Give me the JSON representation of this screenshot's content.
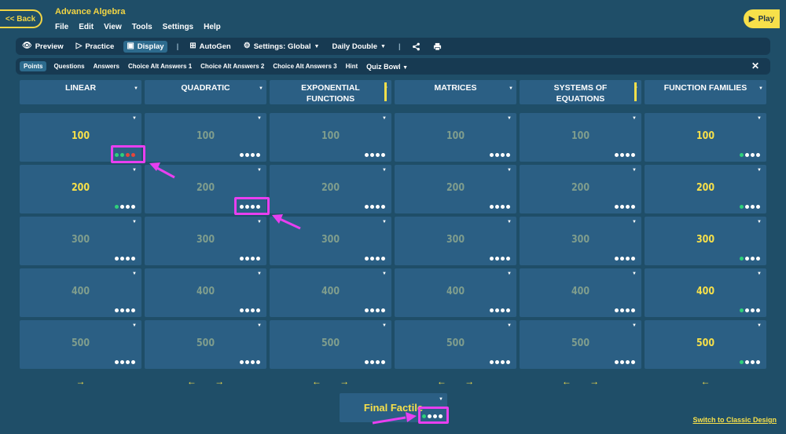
{
  "back_label": "<< Back",
  "app_title": "Advance Algebra",
  "menu": [
    "File",
    "Edit",
    "View",
    "Tools",
    "Settings",
    "Help"
  ],
  "play_label": "Play",
  "toolbar": {
    "preview": "Preview",
    "practice": "Practice",
    "display": "Display",
    "autogen": "AutoGen",
    "settings": "Settings: Global",
    "daily": "Daily Double"
  },
  "filters": [
    "Points",
    "Questions",
    "Answers",
    "Choice Alt Answers 1",
    "Choice Alt Answers 2",
    "Choice Alt Answers 3",
    "Hint",
    "Quiz Bowl"
  ],
  "categories": [
    {
      "title": "LINEAR",
      "bar": false
    },
    {
      "title": "QUADRATIC",
      "bar": false
    },
    {
      "title": "EXPONENTIAL\nFUNCTIONS",
      "bar": true
    },
    {
      "title": "MATRICES",
      "bar": false
    },
    {
      "title": "SYSTEMS OF\nEQUATIONS",
      "bar": true
    },
    {
      "title": "FUNCTION FAMILIES",
      "bar": false
    }
  ],
  "rows": [
    {
      "value": "100",
      "tiles": [
        {
          "bright": true,
          "dots": [
            "green",
            "green",
            "red",
            "red"
          ]
        },
        {
          "bright": false,
          "dots": [
            "white",
            "white",
            "white",
            "white"
          ]
        },
        {
          "bright": false,
          "dots": [
            "white",
            "white",
            "white",
            "white"
          ]
        },
        {
          "bright": false,
          "dots": [
            "white",
            "white",
            "white",
            "white"
          ]
        },
        {
          "bright": false,
          "dots": [
            "white",
            "white",
            "white",
            "white"
          ]
        },
        {
          "bright": true,
          "dots": [
            "green",
            "white",
            "white",
            "white"
          ]
        }
      ]
    },
    {
      "value": "200",
      "tiles": [
        {
          "bright": true,
          "dots": [
            "green",
            "white",
            "white",
            "white"
          ]
        },
        {
          "bright": false,
          "dots": [
            "white",
            "white",
            "white",
            "white"
          ]
        },
        {
          "bright": false,
          "dots": [
            "white",
            "white",
            "white",
            "white"
          ]
        },
        {
          "bright": false,
          "dots": [
            "white",
            "white",
            "white",
            "white"
          ]
        },
        {
          "bright": false,
          "dots": [
            "white",
            "white",
            "white",
            "white"
          ]
        },
        {
          "bright": true,
          "dots": [
            "green",
            "white",
            "white",
            "white"
          ]
        }
      ]
    },
    {
      "value": "300",
      "tiles": [
        {
          "bright": false,
          "dots": [
            "white",
            "white",
            "white",
            "white"
          ]
        },
        {
          "bright": false,
          "dots": [
            "white",
            "white",
            "white",
            "white"
          ]
        },
        {
          "bright": false,
          "dots": [
            "white",
            "white",
            "white",
            "white"
          ]
        },
        {
          "bright": false,
          "dots": [
            "white",
            "white",
            "white",
            "white"
          ]
        },
        {
          "bright": false,
          "dots": [
            "white",
            "white",
            "white",
            "white"
          ]
        },
        {
          "bright": true,
          "dots": [
            "green",
            "white",
            "white",
            "white"
          ]
        }
      ]
    },
    {
      "value": "400",
      "tiles": [
        {
          "bright": false,
          "dots": [
            "white",
            "white",
            "white",
            "white"
          ]
        },
        {
          "bright": false,
          "dots": [
            "white",
            "white",
            "white",
            "white"
          ]
        },
        {
          "bright": false,
          "dots": [
            "white",
            "white",
            "white",
            "white"
          ]
        },
        {
          "bright": false,
          "dots": [
            "white",
            "white",
            "white",
            "white"
          ]
        },
        {
          "bright": false,
          "dots": [
            "white",
            "white",
            "white",
            "white"
          ]
        },
        {
          "bright": true,
          "dots": [
            "green",
            "white",
            "white",
            "white"
          ]
        }
      ]
    },
    {
      "value": "500",
      "tiles": [
        {
          "bright": false,
          "dots": [
            "white",
            "white",
            "white",
            "white"
          ]
        },
        {
          "bright": false,
          "dots": [
            "white",
            "white",
            "white",
            "white"
          ]
        },
        {
          "bright": false,
          "dots": [
            "white",
            "white",
            "white",
            "white"
          ]
        },
        {
          "bright": false,
          "dots": [
            "white",
            "white",
            "white",
            "white"
          ]
        },
        {
          "bright": false,
          "dots": [
            "white",
            "white",
            "white",
            "white"
          ]
        },
        {
          "bright": true,
          "dots": [
            "green",
            "white",
            "white",
            "white"
          ]
        }
      ]
    }
  ],
  "column_arrows": [
    "→",
    "← →",
    "← →",
    "← →",
    "← →",
    "←"
  ],
  "final_label": "Final Factile",
  "final_dots": [
    "green",
    "white",
    "white",
    "white"
  ],
  "classic_link": "Switch to Classic Design",
  "colors": {
    "background": "#1f4e68",
    "tile": "#2b5f84",
    "accent": "#f7e04a",
    "annotation": "#e83ff0"
  }
}
